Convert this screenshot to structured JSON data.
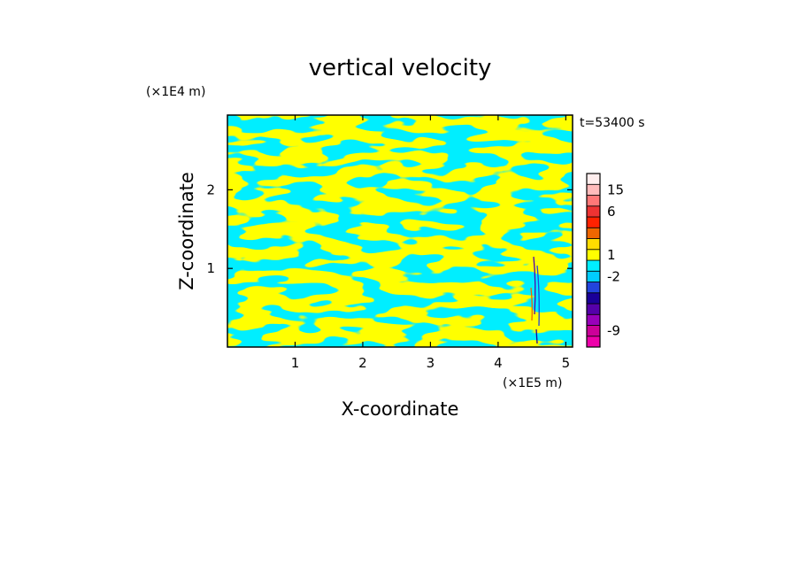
{
  "chart_data": {
    "type": "heatmap",
    "title": "vertical velocity",
    "xlabel": "X-coordinate",
    "ylabel": "Z-coordinate",
    "x_unit": "(×1E5 m)",
    "y_unit": "(×1E4 m)",
    "time_label": "t=53400 s",
    "xlim": [
      0,
      5.1
    ],
    "ylim": [
      0,
      2.95
    ],
    "x_ticks": [
      1,
      2,
      3,
      4,
      5
    ],
    "y_ticks": [
      1,
      2
    ],
    "colorbar": {
      "levels_colors": [
        "#ee00aa",
        "#cc0099",
        "#9900bb",
        "#5500aa",
        "#1a0099",
        "#2244dd",
        "#00ccff",
        "#00eeff",
        "#ffff00",
        "#ffdd00",
        "#ee6600",
        "#ff2200",
        "#ee3333",
        "#ff7777",
        "#ffbbbb",
        "#ffeeee"
      ],
      "tick_labels": [
        {
          "label": "15",
          "level_index": 14
        },
        {
          "label": "6",
          "level_index": 12
        },
        {
          "label": "1",
          "level_index": 8
        },
        {
          "label": "-2",
          "level_index": 6
        },
        {
          "label": "-9",
          "level_index": 1
        }
      ]
    },
    "field_colors": {
      "positive": "#ffff00",
      "negative": "#00eeff"
    }
  }
}
